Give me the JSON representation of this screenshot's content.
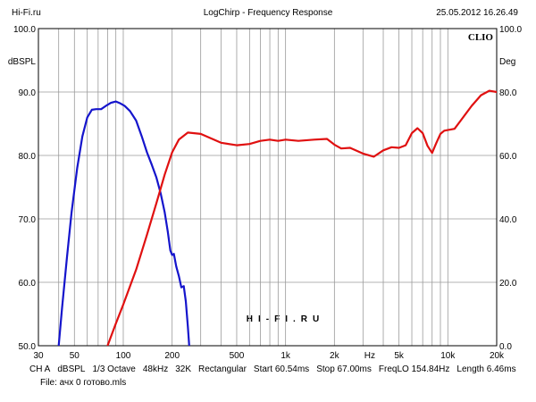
{
  "header": {
    "left": "Hi-Fi.ru",
    "center": "LogChirp - Frequency Response",
    "right": "25.05.2012 16.26.49"
  },
  "chart_data": {
    "type": "line",
    "brand": "CLIO",
    "watermark": "HI-FI.RU",
    "grid": true,
    "x_scale": "log",
    "xlim": [
      30,
      20000
    ],
    "x_ticks": [
      {
        "value": 30,
        "label": "30"
      },
      {
        "value": 50,
        "label": "50"
      },
      {
        "value": 100,
        "label": "100"
      },
      {
        "value": 200,
        "label": "200"
      },
      {
        "value": 500,
        "label": "500"
      },
      {
        "value": 1000,
        "label": "1k"
      },
      {
        "value": 2000,
        "label": "2k"
      },
      {
        "value": 5000,
        "label": "5k"
      },
      {
        "value": 10000,
        "label": "10k"
      },
      {
        "value": 20000,
        "label": "20k"
      }
    ],
    "x_unit_label": "Hz",
    "x_unit_at": 3300,
    "ylim": [
      50,
      100
    ],
    "y_ticks_left": [
      "50.0",
      "60.0",
      "70.0",
      "80.0",
      "90.0",
      "100.0"
    ],
    "y_ticks_right": [
      "0.0",
      "20.0",
      "40.0",
      "60.0",
      "80.0",
      "100.0"
    ],
    "ylabel_left": "dBSPL",
    "ylabel_right": "Deg",
    "series": [
      {
        "color": "#1515cc",
        "points": [
          [
            40,
            50
          ],
          [
            42,
            56
          ],
          [
            45,
            64
          ],
          [
            48,
            71
          ],
          [
            52,
            78
          ],
          [
            56,
            83
          ],
          [
            60,
            86
          ],
          [
            64,
            87.2
          ],
          [
            68,
            87.3
          ],
          [
            73,
            87.3
          ],
          [
            78,
            87.8
          ],
          [
            84,
            88.3
          ],
          [
            90,
            88.5
          ],
          [
            96,
            88.2
          ],
          [
            102,
            87.8
          ],
          [
            110,
            87
          ],
          [
            120,
            85.5
          ],
          [
            130,
            83
          ],
          [
            140,
            80.5
          ],
          [
            150,
            78.5
          ],
          [
            160,
            76.5
          ],
          [
            170,
            74
          ],
          [
            180,
            71
          ],
          [
            188,
            68
          ],
          [
            195,
            65
          ],
          [
            200,
            64.3
          ],
          [
            205,
            64.5
          ],
          [
            212,
            62.5
          ],
          [
            220,
            61
          ],
          [
            228,
            59.2
          ],
          [
            236,
            59.4
          ],
          [
            243,
            57
          ],
          [
            250,
            53
          ],
          [
            255,
            50
          ]
        ]
      },
      {
        "color": "#e01010",
        "points": [
          [
            80,
            50
          ],
          [
            90,
            53.5
          ],
          [
            100,
            56.5
          ],
          [
            120,
            62
          ],
          [
            140,
            67.5
          ],
          [
            160,
            72.5
          ],
          [
            180,
            77
          ],
          [
            200,
            80.5
          ],
          [
            220,
            82.5
          ],
          [
            250,
            83.6
          ],
          [
            300,
            83.4
          ],
          [
            400,
            82
          ],
          [
            500,
            81.6
          ],
          [
            600,
            81.8
          ],
          [
            700,
            82.3
          ],
          [
            800,
            82.5
          ],
          [
            900,
            82.3
          ],
          [
            1000,
            82.5
          ],
          [
            1200,
            82.3
          ],
          [
            1500,
            82.5
          ],
          [
            1800,
            82.6
          ],
          [
            2000,
            81.7
          ],
          [
            2200,
            81.1
          ],
          [
            2500,
            81.2
          ],
          [
            3000,
            80.3
          ],
          [
            3500,
            79.8
          ],
          [
            4000,
            80.8
          ],
          [
            4500,
            81.3
          ],
          [
            5000,
            81.2
          ],
          [
            5500,
            81.6
          ],
          [
            6000,
            83.5
          ],
          [
            6500,
            84.3
          ],
          [
            7000,
            83.5
          ],
          [
            7500,
            81.5
          ],
          [
            8000,
            80.4
          ],
          [
            8500,
            82
          ],
          [
            9000,
            83.4
          ],
          [
            9500,
            83.9
          ],
          [
            10000,
            84
          ],
          [
            11000,
            84.2
          ],
          [
            12000,
            85.5
          ],
          [
            14000,
            87.8
          ],
          [
            16000,
            89.5
          ],
          [
            18000,
            90.2
          ],
          [
            20000,
            90
          ]
        ]
      }
    ]
  },
  "footer": {
    "items": [
      "CH A",
      "dBSPL",
      "1/3 Octave",
      "48kHz",
      "32K",
      "Rectangular",
      "Start 60.54ms",
      "Stop 67.00ms",
      "FreqLO 154.84Hz",
      "Length 6.46ms"
    ],
    "file_line": "File: ачх 0 готово.mls"
  }
}
